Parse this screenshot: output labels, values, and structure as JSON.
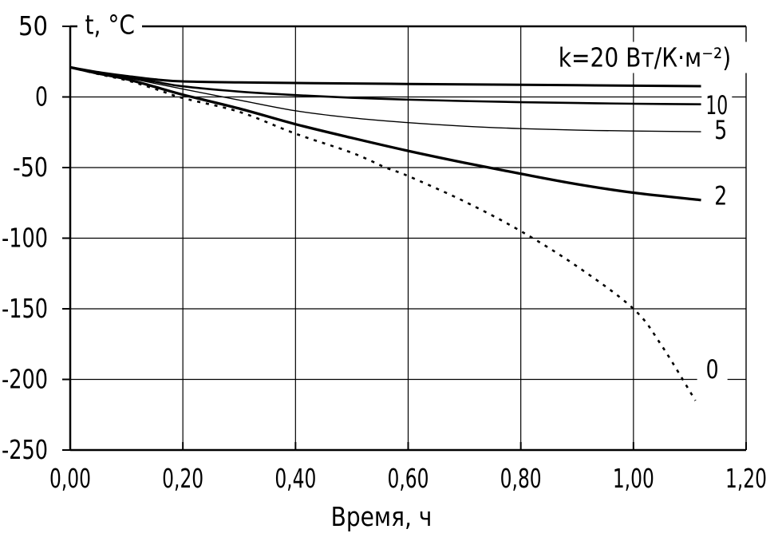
{
  "page": {
    "background": "#ffffff",
    "ink": "#000000"
  },
  "chart_data": {
    "type": "line",
    "title": "",
    "xlabel": "Время, ч",
    "ylabel": "t, °C",
    "legend_annotation": "k=20 Вт/К·м⁻²)",
    "legend_anchor": [
      1.02,
      27.5
    ],
    "grid": true,
    "xlim": [
      0,
      1.2
    ],
    "ylim": [
      -250,
      50
    ],
    "x_tick_values": [
      0,
      0.2,
      0.4,
      0.6,
      0.8,
      1.0,
      1.2
    ],
    "x_tick_labels": [
      "0,00",
      "0,20",
      "0,40",
      "0,60",
      "0,80",
      "1,00",
      "1,20"
    ],
    "y_tick_values": [
      50,
      0,
      -50,
      -100,
      -150,
      -200,
      -250
    ],
    "y_tick_labels": [
      "50",
      "0",
      "-50",
      "-100",
      "-150",
      "-200",
      "-250"
    ],
    "series": [
      {
        "name": "k=20",
        "k": 20,
        "line": "solid",
        "width": 3.0,
        "end_label": "",
        "points": [
          [
            0,
            21
          ],
          [
            0.05,
            17.5
          ],
          [
            0.1,
            14.8
          ],
          [
            0.15,
            12.4
          ],
          [
            0.2,
            11.0
          ],
          [
            0.3,
            10.3
          ],
          [
            0.4,
            9.9
          ],
          [
            0.5,
            9.5
          ],
          [
            0.6,
            9.2
          ],
          [
            0.7,
            8.9
          ],
          [
            0.8,
            8.6
          ],
          [
            0.9,
            8.3
          ],
          [
            1.0,
            8.0
          ],
          [
            1.12,
            7.6
          ]
        ]
      },
      {
        "name": "k=10",
        "k": 10,
        "line": "solid",
        "width": 2.6,
        "end_label": "10",
        "label_anchor": [
          1.148,
          -6
        ],
        "points": [
          [
            0,
            21
          ],
          [
            0.05,
            17.2
          ],
          [
            0.1,
            14.2
          ],
          [
            0.15,
            10.8
          ],
          [
            0.2,
            7.5
          ],
          [
            0.3,
            3.8
          ],
          [
            0.4,
            1.3
          ],
          [
            0.5,
            -0.6
          ],
          [
            0.6,
            -1.9
          ],
          [
            0.7,
            -2.9
          ],
          [
            0.8,
            -3.7
          ],
          [
            0.9,
            -4.3
          ],
          [
            1.0,
            -4.8
          ],
          [
            1.12,
            -5.2
          ]
        ]
      },
      {
        "name": "k=5",
        "k": 5,
        "line": "solid",
        "width": 1.4,
        "end_label": "5",
        "label_anchor": [
          1.155,
          -23.5
        ],
        "points": [
          [
            0,
            21
          ],
          [
            0.05,
            17.0
          ],
          [
            0.1,
            13.6
          ],
          [
            0.15,
            9.6
          ],
          [
            0.2,
            5.6
          ],
          [
            0.3,
            -2.2
          ],
          [
            0.4,
            -9.8
          ],
          [
            0.5,
            -14.8
          ],
          [
            0.6,
            -18.2
          ],
          [
            0.7,
            -20.7
          ],
          [
            0.8,
            -22.4
          ],
          [
            0.9,
            -23.5
          ],
          [
            1.0,
            -24.1
          ],
          [
            1.12,
            -24.6
          ]
        ]
      },
      {
        "name": "k=2",
        "k": 2,
        "line": "solid",
        "width": 3.3,
        "end_label": "2",
        "label_anchor": [
          1.155,
          -70
        ],
        "points": [
          [
            0,
            21
          ],
          [
            0.05,
            16.6
          ],
          [
            0.1,
            12.6
          ],
          [
            0.15,
            7.2
          ],
          [
            0.2,
            1.6
          ],
          [
            0.3,
            -8.2
          ],
          [
            0.4,
            -19.3
          ],
          [
            0.5,
            -29.0
          ],
          [
            0.6,
            -38.2
          ],
          [
            0.7,
            -46.6
          ],
          [
            0.8,
            -54.4
          ],
          [
            0.9,
            -61.8
          ],
          [
            1.0,
            -67.8
          ],
          [
            1.12,
            -73.0
          ]
        ]
      },
      {
        "name": "k=0",
        "k": 0,
        "line": "dotted",
        "width": 2.6,
        "end_label": "0",
        "label_anchor": [
          1.14,
          -193
        ],
        "points": [
          [
            0,
            21
          ],
          [
            0.05,
            16.2
          ],
          [
            0.1,
            11.8
          ],
          [
            0.15,
            5.8
          ],
          [
            0.2,
            -0.8
          ],
          [
            0.3,
            -10.5
          ],
          [
            0.4,
            -26
          ],
          [
            0.5,
            -39.5
          ],
          [
            0.56,
            -50
          ],
          [
            0.6,
            -56
          ],
          [
            0.7,
            -74
          ],
          [
            0.8,
            -95
          ],
          [
            0.9,
            -120
          ],
          [
            1.0,
            -150
          ],
          [
            1.05,
            -176
          ],
          [
            1.11,
            -215
          ]
        ]
      }
    ]
  }
}
